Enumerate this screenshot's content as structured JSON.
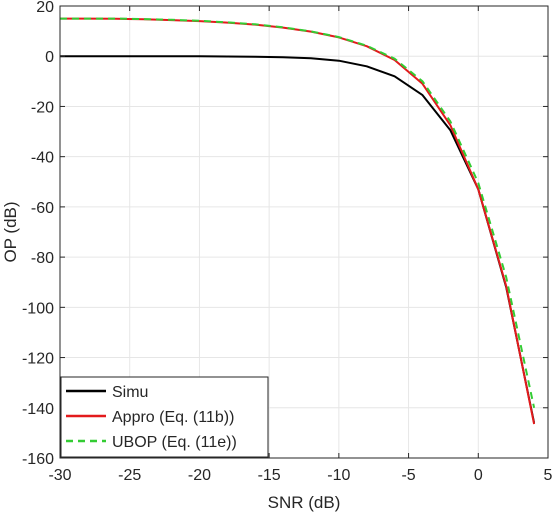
{
  "chart_data": {
    "type": "line",
    "title": "",
    "xlabel": "SNR (dB)",
    "ylabel": "OP (dB)",
    "xlim": [
      -30,
      5
    ],
    "ylim": [
      -160,
      20
    ],
    "xticks": [
      -30,
      -25,
      -20,
      -15,
      -10,
      -5,
      0,
      5
    ],
    "yticks": [
      20,
      0,
      -20,
      -40,
      -60,
      -80,
      -100,
      -120,
      -140,
      -160
    ],
    "grid": true,
    "legend_position": "bottom-left",
    "series": [
      {
        "name": "Simu",
        "color": "#000000",
        "style": "solid",
        "x": [
          -30,
          -28,
          -26,
          -24,
          -22,
          -20,
          -18,
          -16,
          -14,
          -12,
          -10,
          -8,
          -6,
          -4,
          -2,
          0,
          2,
          4
        ],
        "y": [
          0,
          0,
          0,
          0,
          0,
          0,
          -0.1,
          -0.2,
          -0.4,
          -0.8,
          -1.8,
          -4,
          -8,
          -15.5,
          -29.5,
          -53,
          -92,
          -146
        ]
      },
      {
        "name": "Appro (Eq. (11b))",
        "color": "#e31a1c",
        "style": "solid",
        "x": [
          -30,
          -28,
          -26,
          -24,
          -22,
          -20,
          -18,
          -16,
          -14,
          -12,
          -10,
          -8,
          -6,
          -4,
          -2,
          0,
          2,
          4
        ],
        "y": [
          15,
          15,
          14.9,
          14.7,
          14.4,
          14,
          13.4,
          12.6,
          11.4,
          9.8,
          7.5,
          4,
          -1.5,
          -11,
          -27.5,
          -53,
          -91.5,
          -146.5
        ]
      },
      {
        "name": "UBOP (Eq. (11e))",
        "color": "#33cc33",
        "style": "dashed",
        "x": [
          -30,
          -28,
          -26,
          -24,
          -22,
          -20,
          -18,
          -16,
          -14,
          -12,
          -10,
          -8,
          -6,
          -4,
          -2,
          0,
          2,
          4
        ],
        "y": [
          15,
          15,
          15,
          14.8,
          14.5,
          14.1,
          13.5,
          12.7,
          11.5,
          9.9,
          7.6,
          4.2,
          -1,
          -10,
          -26,
          -50.5,
          -88,
          -140
        ]
      }
    ]
  }
}
